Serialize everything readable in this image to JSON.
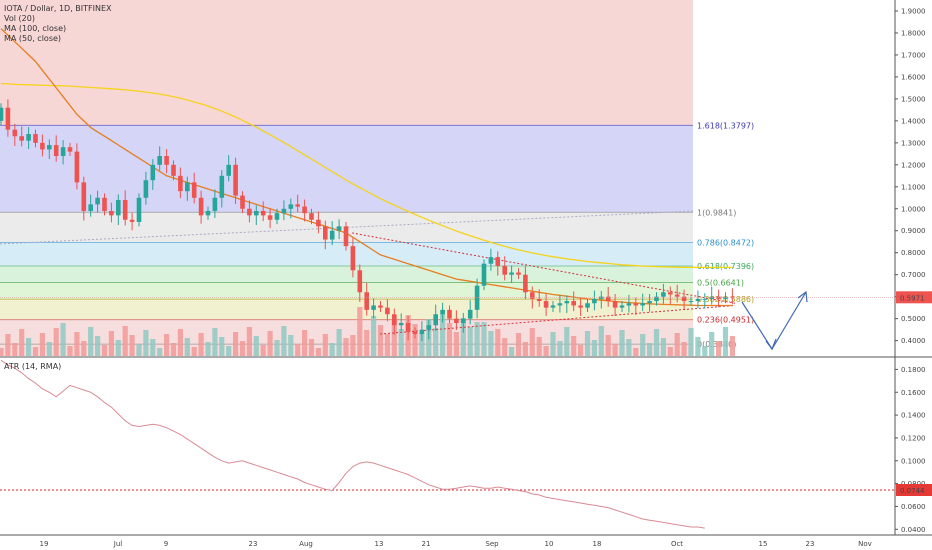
{
  "legend": {
    "symbol": "IOTA / Dollar, 1D, BITFINEX",
    "vol": "Vol (20)",
    "ma100": "MA (100, close)",
    "ma50": "MA (50, close)",
    "atr": "ATR (14, RMA)"
  },
  "colors": {
    "up": "#26a69a",
    "down": "#ef5350",
    "ma100": "#f7d21a",
    "ma50": "#e67e22",
    "atr_line": "#d98a94",
    "atr_level": "#e02020",
    "arrow": "#3f6ab3",
    "price_badge": "#ef5350"
  },
  "chart_data": [
    {
      "type": "candlestick",
      "title": "IOTA / Dollar, 1D, BITFINEX",
      "price_axis_ticks": [
        "1.9000",
        "1.8000",
        "1.7000",
        "1.6000",
        "1.5000",
        "1.4000",
        "1.3000",
        "1.2000",
        "1.1000",
        "1.0000",
        "0.9000",
        "0.8000",
        "0.7000",
        "0.6000",
        "0.5000",
        "0.4000"
      ],
      "x_axis_ticks": [
        "19",
        "Jul",
        "9",
        "23",
        "Aug",
        "13",
        "21",
        "Sep",
        "10",
        "18",
        "Oct",
        "15",
        "23",
        "Nov"
      ],
      "ylim": [
        0.33,
        1.95
      ],
      "last_price": "0.5971",
      "fib_levels": [
        {
          "label": "1.618(1.3797)",
          "value": 1.3797,
          "color": "#3a3ab0",
          "zone": "#d4d5f7"
        },
        {
          "label": "1(0.9841)",
          "value": 0.9841,
          "color": "#777777",
          "zone": "#ebebeb"
        },
        {
          "label": "0.786(0.8472)",
          "value": 0.8472,
          "color": "#2a8fc9",
          "zone": "#d6ecf6"
        },
        {
          "label": "0.618(0.7396)",
          "value": 0.7396,
          "color": "#3aa85a",
          "zone": "#d8f2dc"
        },
        {
          "label": "0.5(0.6641)",
          "value": 0.6641,
          "color": "#44a544",
          "zone": "#e0f4d6"
        },
        {
          "label": "0.382(0.5886)",
          "value": 0.5886,
          "color": "#b3a11e",
          "zone": "#f1f1d0"
        },
        {
          "label": "0.236(0.4951)",
          "value": 0.4951,
          "color": "#c9282d",
          "zone": "#f7dede"
        },
        {
          "label": "0(0.3840)",
          "value": 0.384,
          "color": "#777777",
          "zone": "#f7dede"
        }
      ],
      "close": [
        1.46,
        1.36,
        1.33,
        1.31,
        1.34,
        1.3,
        1.27,
        1.29,
        1.24,
        1.28,
        1.26,
        1.12,
        0.99,
        1.02,
        1.05,
        0.99,
        0.97,
        1.04,
        0.95,
        0.94,
        1.05,
        1.13,
        1.2,
        1.24,
        1.2,
        1.15,
        1.08,
        1.12,
        1.05,
        0.97,
        0.99,
        1.05,
        1.15,
        1.2,
        1.06,
        1.0,
        0.97,
        0.99,
        0.97,
        0.95,
        0.98,
        1.0,
        1.02,
        1.01,
        0.98,
        0.95,
        0.92,
        0.86,
        0.9,
        0.92,
        0.83,
        0.72,
        0.62,
        0.54,
        0.56,
        0.55,
        0.52,
        0.47,
        0.48,
        0.44,
        0.43,
        0.45,
        0.47,
        0.52,
        0.54,
        0.5,
        0.48,
        0.5,
        0.54,
        0.65,
        0.75,
        0.78,
        0.74,
        0.7,
        0.71,
        0.7,
        0.62,
        0.59,
        0.58,
        0.55,
        0.56,
        0.57,
        0.58,
        0.56,
        0.55,
        0.57,
        0.59,
        0.6,
        0.58,
        0.55,
        0.56,
        0.57,
        0.56,
        0.57,
        0.58,
        0.6,
        0.62,
        0.61,
        0.6,
        0.58,
        0.58,
        0.59,
        0.59,
        0.6,
        0.59,
        0.6,
        0.5971
      ],
      "ma100": [
        1.57,
        1.568,
        1.566,
        1.565,
        1.564,
        1.563,
        1.562,
        1.561,
        1.56,
        1.559,
        1.558,
        1.556,
        1.554,
        1.552,
        1.55,
        1.548,
        1.546,
        1.544,
        1.541,
        1.538,
        1.535,
        1.531,
        1.527,
        1.522,
        1.516,
        1.51,
        1.503,
        1.495,
        1.486,
        1.477,
        1.467,
        1.456,
        1.444,
        1.431,
        1.417,
        1.402,
        1.387,
        1.371,
        1.354,
        1.337,
        1.319,
        1.301,
        1.283,
        1.264,
        1.245,
        1.226,
        1.207,
        1.188,
        1.169,
        1.15,
        1.131,
        1.113,
        1.096,
        1.079,
        1.062,
        1.046,
        1.031,
        1.016,
        1.002,
        0.988,
        0.974,
        0.961,
        0.948,
        0.935,
        0.923,
        0.911,
        0.899,
        0.888,
        0.877,
        0.867,
        0.857,
        0.847,
        0.838,
        0.829,
        0.821,
        0.813,
        0.806,
        0.799,
        0.793,
        0.787,
        0.782,
        0.777,
        0.772,
        0.768,
        0.764,
        0.76,
        0.757,
        0.754,
        0.751,
        0.748,
        0.745,
        0.743,
        0.741,
        0.739,
        0.738,
        0.737,
        0.736,
        0.735,
        0.734,
        0.733,
        0.733,
        0.733,
        0.733,
        0.733,
        0.733,
        0.733,
        0.733
      ],
      "ma50": [
        1.82,
        1.79,
        1.76,
        1.73,
        1.7,
        1.67,
        1.63,
        1.59,
        1.55,
        1.51,
        1.47,
        1.43,
        1.4,
        1.37,
        1.35,
        1.33,
        1.31,
        1.29,
        1.27,
        1.25,
        1.23,
        1.21,
        1.19,
        1.17,
        1.15,
        1.14,
        1.13,
        1.12,
        1.11,
        1.1,
        1.09,
        1.08,
        1.07,
        1.06,
        1.05,
        1.04,
        1.03,
        1.02,
        1.01,
        1.0,
        0.99,
        0.98,
        0.97,
        0.96,
        0.95,
        0.94,
        0.93,
        0.92,
        0.91,
        0.9,
        0.89,
        0.87,
        0.85,
        0.83,
        0.81,
        0.79,
        0.78,
        0.77,
        0.76,
        0.75,
        0.74,
        0.73,
        0.72,
        0.71,
        0.7,
        0.69,
        0.68,
        0.675,
        0.67,
        0.665,
        0.66,
        0.655,
        0.65,
        0.645,
        0.64,
        0.635,
        0.63,
        0.625,
        0.62,
        0.615,
        0.61,
        0.606,
        0.602,
        0.598,
        0.594,
        0.59,
        0.587,
        0.584,
        0.581,
        0.578,
        0.575,
        0.573,
        0.571,
        0.569,
        0.567,
        0.566,
        0.565,
        0.564,
        0.563,
        0.562,
        0.561,
        0.56,
        0.56,
        0.56,
        0.56,
        0.56,
        0.56
      ]
    },
    {
      "type": "line",
      "title": "ATR (14, RMA)",
      "y_axis_ticks": [
        "0.1800",
        "0.1600",
        "0.1400",
        "0.1200",
        "0.1000",
        "0.0800",
        "0.0600",
        "0.0400"
      ],
      "ylim": [
        0.035,
        0.19
      ],
      "level": "0.0744",
      "atr": [
        0.188,
        0.184,
        0.181,
        0.177,
        0.172,
        0.168,
        0.163,
        0.16,
        0.156,
        0.161,
        0.166,
        0.164,
        0.162,
        0.16,
        0.156,
        0.151,
        0.147,
        0.141,
        0.135,
        0.131,
        0.13,
        0.131,
        0.132,
        0.131,
        0.129,
        0.126,
        0.123,
        0.119,
        0.115,
        0.111,
        0.107,
        0.103,
        0.1,
        0.098,
        0.099,
        0.1,
        0.098,
        0.096,
        0.094,
        0.092,
        0.09,
        0.088,
        0.086,
        0.084,
        0.081,
        0.079,
        0.077,
        0.075,
        0.074,
        0.081,
        0.089,
        0.095,
        0.098,
        0.099,
        0.098,
        0.096,
        0.094,
        0.092,
        0.09,
        0.088,
        0.085,
        0.082,
        0.079,
        0.077,
        0.075,
        0.075,
        0.076,
        0.077,
        0.078,
        0.077,
        0.076,
        0.076,
        0.077,
        0.076,
        0.075,
        0.074,
        0.073,
        0.071,
        0.07,
        0.068,
        0.067,
        0.066,
        0.065,
        0.064,
        0.063,
        0.062,
        0.061,
        0.06,
        0.059,
        0.057,
        0.055,
        0.053,
        0.051,
        0.049,
        0.048,
        0.047,
        0.046,
        0.045,
        0.044,
        0.043,
        0.042,
        0.042,
        0.041
      ]
    }
  ]
}
